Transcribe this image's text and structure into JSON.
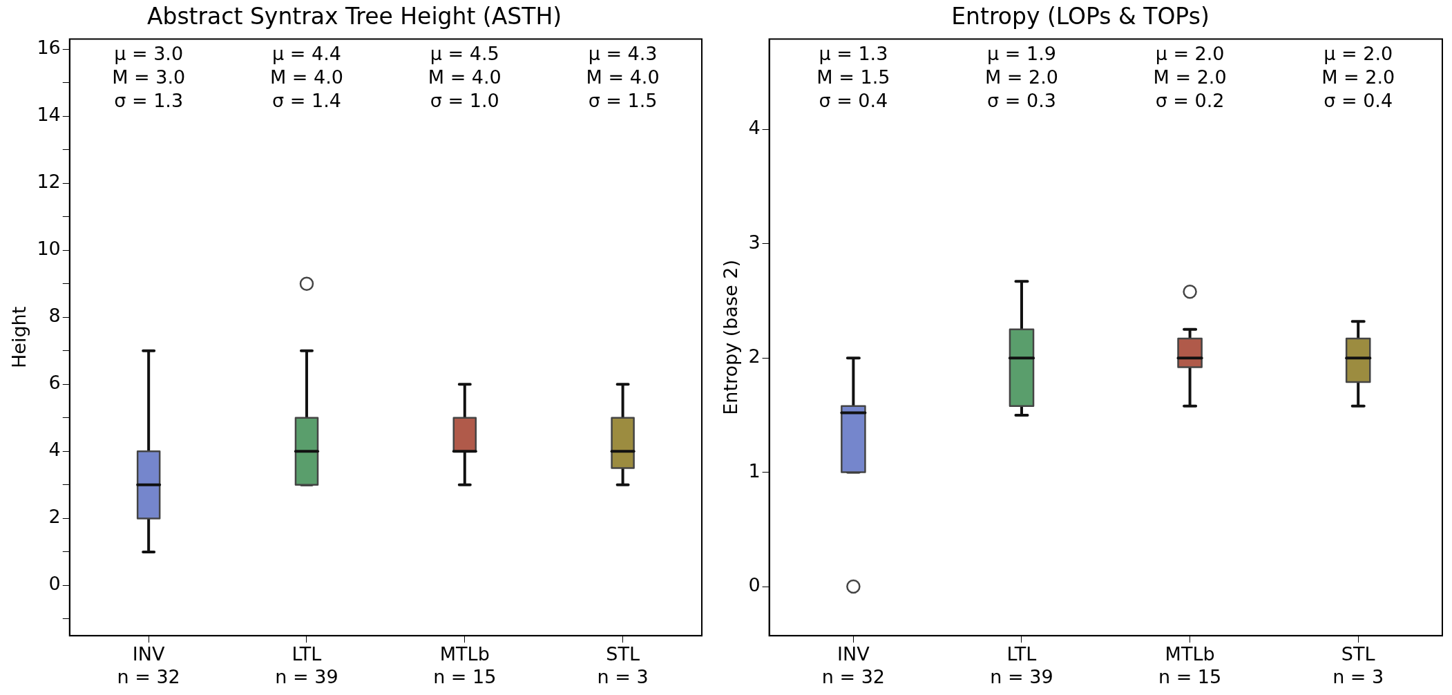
{
  "chart_data": [
    {
      "type": "box",
      "title": "Abstract Syntrax Tree Height (ASTH)",
      "ylabel": "Height",
      "categories": [
        "INV\nn = 32",
        "LTL\nn = 39",
        "MTLb\nn = 15",
        "STL\nn = 3"
      ],
      "colors": [
        "#7586cc",
        "#5a9e6c",
        "#b05a4a",
        "#9c8c40"
      ],
      "boxes": [
        {
          "low": 1,
          "q1": 2,
          "median": 3,
          "q3": 4,
          "high": 7
        },
        {
          "low": 3,
          "q1": 3,
          "median": 4,
          "q3": 5,
          "high": 7,
          "outliers": [
            9
          ]
        },
        {
          "low": 3,
          "q1": 4,
          "median": 4,
          "q3": 5,
          "high": 6
        },
        {
          "low": 3,
          "q1": 3.5,
          "median": 4,
          "q3": 5,
          "high": 6
        }
      ],
      "ylim": [
        -1.5,
        16.3
      ],
      "yticks": [
        {
          "value": -1,
          "label": null
        },
        0,
        {
          "value": 1,
          "label": null
        },
        2,
        {
          "value": 3,
          "label": null
        },
        4,
        {
          "value": 5,
          "label": null
        },
        6,
        {
          "value": 7,
          "label": null
        },
        8,
        {
          "value": 9,
          "label": null
        },
        10,
        {
          "value": 11,
          "label": null
        },
        12,
        {
          "value": 13,
          "label": null
        },
        14,
        {
          "value": 15,
          "label": null
        },
        16
      ],
      "annotations": [
        "μ = 3.0\nM = 3.0\nσ = 1.3",
        "μ = 4.4\nM = 4.0\nσ = 1.4",
        "μ = 4.5\nM = 4.0\nσ = 1.0",
        "μ = 4.3\nM = 4.0\nσ = 1.5"
      ]
    },
    {
      "type": "box",
      "title": "Entropy (LOPs & TOPs)",
      "ylabel": "Entropy (base 2)",
      "categories": [
        "INV\nn = 32",
        "LTL\nn = 39",
        "MTLb\nn = 15",
        "STL\nn = 3"
      ],
      "colors": [
        "#7586cc",
        "#5a9e6c",
        "#b05a4a",
        "#9c8c40"
      ],
      "boxes": [
        {
          "low": 1.0,
          "q1": 1.0,
          "median": 1.52,
          "q3": 1.58,
          "high": 2.0,
          "outliers": [
            0
          ]
        },
        {
          "low": 1.5,
          "q1": 1.58,
          "median": 2.0,
          "q3": 2.25,
          "high": 2.67
        },
        {
          "low": 1.58,
          "q1": 1.92,
          "median": 2.0,
          "q3": 2.17,
          "high": 2.25,
          "outliers": [
            2.58
          ]
        },
        {
          "low": 1.58,
          "q1": 1.79,
          "median": 2.0,
          "q3": 2.17,
          "high": 2.32
        }
      ],
      "ylim": [
        -0.43,
        4.79
      ],
      "yticks": [
        0,
        1,
        2,
        3,
        4
      ],
      "annotations": [
        "μ = 1.3\nM = 1.5\nσ = 0.4",
        "μ = 1.9\nM = 2.0\nσ = 0.3",
        "μ = 2.0\nM = 2.0\nσ = 0.2",
        "μ = 2.0\nM = 2.0\nσ = 0.4"
      ]
    }
  ]
}
